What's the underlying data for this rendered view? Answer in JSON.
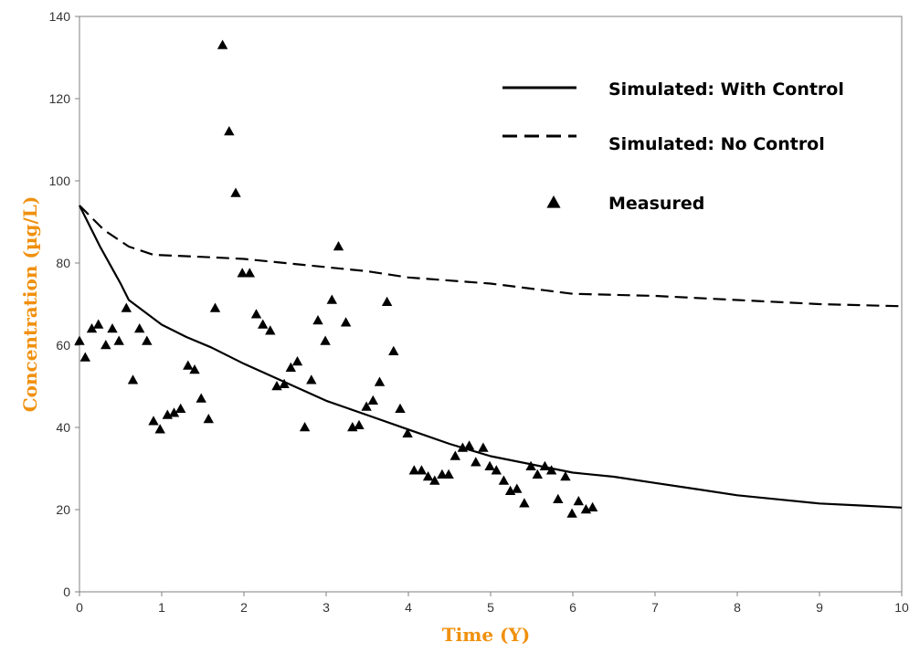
{
  "chart_data": {
    "type": "line",
    "title": "",
    "xlabel": "Time (Y)",
    "ylabel": "Concentration  (µg/L)",
    "xlim": [
      0,
      10
    ],
    "ylim": [
      0,
      140
    ],
    "x_ticks": [
      "0",
      "1",
      "2",
      "3",
      "4",
      "5",
      "6",
      "7",
      "8",
      "9",
      "10"
    ],
    "y_ticks": [
      "0",
      "20",
      "40",
      "60",
      "80",
      "100",
      "120",
      "140"
    ],
    "grid": false,
    "legend_position": "top-right",
    "series": [
      {
        "name": "Simulated: With Control",
        "style": "solid",
        "color": "#000000",
        "points": [
          [
            0,
            94
          ],
          [
            0.25,
            84
          ],
          [
            0.5,
            75
          ],
          [
            0.6,
            71
          ],
          [
            0.8,
            68
          ],
          [
            1,
            65
          ],
          [
            1.3,
            62
          ],
          [
            1.6,
            59.5
          ],
          [
            2,
            55.5
          ],
          [
            2.5,
            51
          ],
          [
            3,
            46.5
          ],
          [
            3.5,
            43
          ],
          [
            4,
            39.5
          ],
          [
            4.5,
            36
          ],
          [
            5,
            33
          ],
          [
            5.5,
            31
          ],
          [
            6,
            29
          ],
          [
            6.5,
            28
          ],
          [
            7,
            26.5
          ],
          [
            7.5,
            25
          ],
          [
            8,
            23.5
          ],
          [
            8.5,
            22.5
          ],
          [
            9,
            21.5
          ],
          [
            9.5,
            21
          ],
          [
            10,
            20.5
          ]
        ]
      },
      {
        "name": "Simulated: No Control",
        "style": "dashed",
        "color": "#000000",
        "points": [
          [
            0,
            94
          ],
          [
            0.3,
            88
          ],
          [
            0.6,
            84
          ],
          [
            0.9,
            82
          ],
          [
            1.5,
            81.5
          ],
          [
            2,
            81
          ],
          [
            2.5,
            80
          ],
          [
            3,
            79
          ],
          [
            3.5,
            78
          ],
          [
            4,
            76.5
          ],
          [
            5,
            75
          ],
          [
            6,
            72.5
          ],
          [
            7,
            72
          ],
          [
            8,
            71
          ],
          [
            9,
            70
          ],
          [
            10,
            69.5
          ]
        ]
      },
      {
        "name": "Measured",
        "style": "triangle",
        "color": "#000000",
        "points": [
          [
            0,
            61
          ],
          [
            0.07,
            57
          ],
          [
            0.15,
            64
          ],
          [
            0.23,
            65
          ],
          [
            0.32,
            60
          ],
          [
            0.4,
            64
          ],
          [
            0.48,
            61
          ],
          [
            0.57,
            69
          ],
          [
            0.65,
            51.5
          ],
          [
            0.73,
            64
          ],
          [
            0.82,
            61
          ],
          [
            0.9,
            41.5
          ],
          [
            0.98,
            39.5
          ],
          [
            1.07,
            43
          ],
          [
            1.15,
            43.5
          ],
          [
            1.23,
            44.5
          ],
          [
            1.32,
            55
          ],
          [
            1.4,
            54
          ],
          [
            1.48,
            47
          ],
          [
            1.57,
            42
          ],
          [
            1.65,
            69
          ],
          [
            1.74,
            133
          ],
          [
            1.82,
            112
          ],
          [
            1.9,
            97
          ],
          [
            1.98,
            77.5
          ],
          [
            2.07,
            77.5
          ],
          [
            2.15,
            67.5
          ],
          [
            2.23,
            65
          ],
          [
            2.32,
            63.5
          ],
          [
            2.4,
            50
          ],
          [
            2.49,
            50.5
          ],
          [
            2.57,
            54.5
          ],
          [
            2.65,
            56
          ],
          [
            2.74,
            40
          ],
          [
            2.82,
            51.5
          ],
          [
            2.9,
            66
          ],
          [
            2.99,
            61
          ],
          [
            3.07,
            71
          ],
          [
            3.15,
            84
          ],
          [
            3.24,
            65.5
          ],
          [
            3.32,
            40
          ],
          [
            3.4,
            40.5
          ],
          [
            3.49,
            45
          ],
          [
            3.57,
            46.5
          ],
          [
            3.65,
            51
          ],
          [
            3.74,
            70.5
          ],
          [
            3.82,
            58.5
          ],
          [
            3.9,
            44.5
          ],
          [
            3.99,
            38.5
          ],
          [
            4.07,
            29.5
          ],
          [
            4.16,
            29.5
          ],
          [
            4.24,
            28
          ],
          [
            4.32,
            27
          ],
          [
            4.41,
            28.5
          ],
          [
            4.49,
            28.5
          ],
          [
            4.57,
            33
          ],
          [
            4.66,
            35
          ],
          [
            4.74,
            35.5
          ],
          [
            4.82,
            31.5
          ],
          [
            4.91,
            35
          ],
          [
            4.99,
            30.5
          ],
          [
            5.07,
            29.5
          ],
          [
            5.16,
            27
          ],
          [
            5.24,
            24.5
          ],
          [
            5.32,
            25
          ],
          [
            5.41,
            21.5
          ],
          [
            5.49,
            30.5
          ],
          [
            5.57,
            28.5
          ],
          [
            5.66,
            30.5
          ],
          [
            5.74,
            29.5
          ],
          [
            5.82,
            22.5
          ],
          [
            5.91,
            28
          ],
          [
            5.99,
            19
          ],
          [
            6.07,
            22
          ],
          [
            6.16,
            20
          ],
          [
            6.24,
            20.5
          ]
        ]
      }
    ]
  }
}
